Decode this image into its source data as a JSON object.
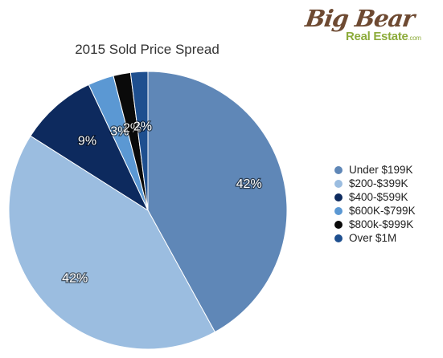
{
  "logo": {
    "script": "Big Bear",
    "sub": "Real Estate",
    "dotcom": ".com"
  },
  "chart_data": {
    "type": "pie",
    "title": "2015 Sold Price Spread",
    "legend_position": "right",
    "slices": [
      {
        "label": "Under $199K",
        "value": 42,
        "display": "42%",
        "color": "#5f87b7"
      },
      {
        "label": "$200-$399K",
        "value": 42,
        "display": "42%",
        "color": "#9bbde0"
      },
      {
        "label": "$400-$599K",
        "value": 9,
        "display": "9%",
        "color": "#0d2a5e"
      },
      {
        "label": "$600K-$799K",
        "value": 3,
        "display": "3%",
        "color": "#5b98d3"
      },
      {
        "label": "$800k-$999K",
        "value": 2,
        "display": "2%",
        "color": "#0a0a0a"
      },
      {
        "label": "Over $1M",
        "value": 2,
        "display": "2%",
        "color": "#1e4f8f"
      }
    ]
  }
}
